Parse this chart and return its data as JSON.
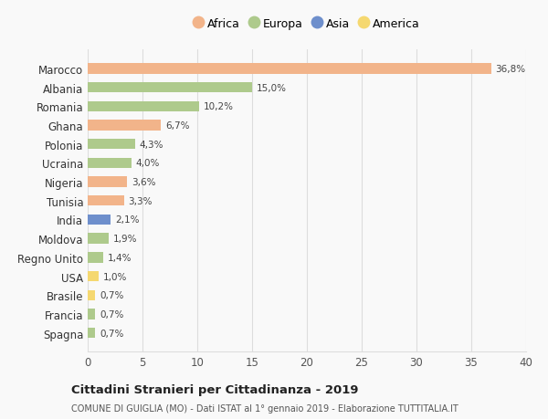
{
  "countries": [
    "Marocco",
    "Albania",
    "Romania",
    "Ghana",
    "Polonia",
    "Ucraina",
    "Nigeria",
    "Tunisia",
    "India",
    "Moldova",
    "Regno Unito",
    "USA",
    "Brasile",
    "Francia",
    "Spagna"
  ],
  "values": [
    36.8,
    15.0,
    10.2,
    6.7,
    4.3,
    4.0,
    3.6,
    3.3,
    2.1,
    1.9,
    1.4,
    1.0,
    0.7,
    0.7,
    0.7
  ],
  "labels": [
    "36,8%",
    "15,0%",
    "10,2%",
    "6,7%",
    "4,3%",
    "4,0%",
    "3,6%",
    "3,3%",
    "2,1%",
    "1,9%",
    "1,4%",
    "1,0%",
    "0,7%",
    "0,7%",
    "0,7%"
  ],
  "colors": [
    "#F2B48A",
    "#AECA8C",
    "#AECA8C",
    "#F2B48A",
    "#AECA8C",
    "#AECA8C",
    "#F2B48A",
    "#F2B48A",
    "#6E8FCC",
    "#AECA8C",
    "#AECA8C",
    "#F5D870",
    "#F5D870",
    "#AECA8C",
    "#AECA8C"
  ],
  "legend": [
    {
      "label": "Africa",
      "color": "#F2B48A"
    },
    {
      "label": "Europa",
      "color": "#AECA8C"
    },
    {
      "label": "Asia",
      "color": "#6E8FCC"
    },
    {
      "label": "America",
      "color": "#F5D870"
    }
  ],
  "xlim": [
    0,
    40
  ],
  "xticks": [
    0,
    5,
    10,
    15,
    20,
    25,
    30,
    35,
    40
  ],
  "title": "Cittadini Stranieri per Cittadinanza - 2019",
  "subtitle": "COMUNE DI GUIGLIA (MO) - Dati ISTAT al 1° gennaio 2019 - Elaborazione TUTTITALIA.IT",
  "background_color": "#f9f9f9",
  "grid_color": "#dddddd"
}
